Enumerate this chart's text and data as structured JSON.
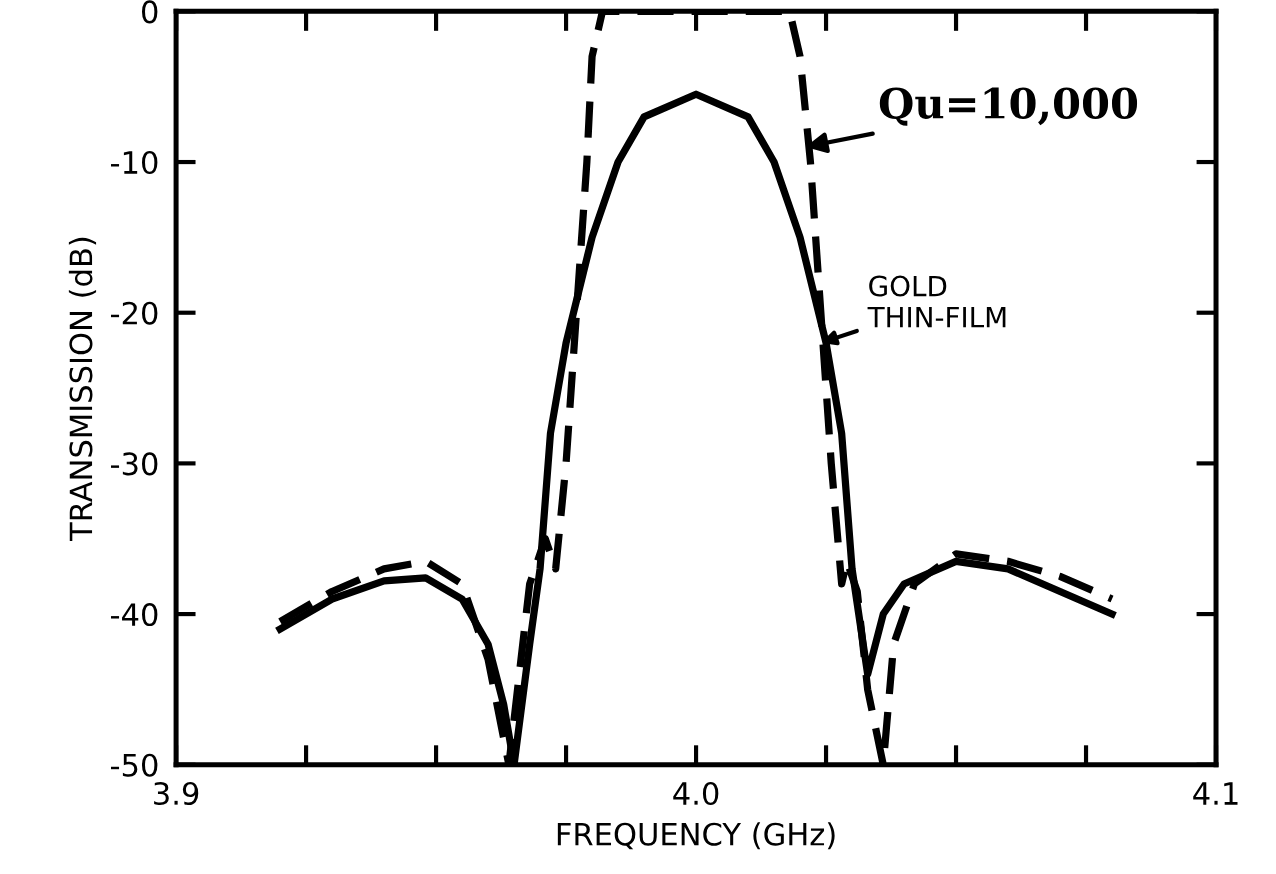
{
  "chart_data": {
    "type": "line",
    "xlabel": "FREQUENCY (GHz)",
    "ylabel": "TRANSMISSION (dB)",
    "xlim": [
      3.9,
      4.1
    ],
    "ylim": [
      -50,
      0
    ],
    "xticks": [
      3.9,
      {
        "value": 3.925,
        "label": null
      },
      {
        "value": 3.95,
        "label": null
      },
      {
        "value": 3.975,
        "label": null
      },
      {
        "value": 4.0,
        "label": "4.0"
      },
      {
        "value": 4.025,
        "label": null
      },
      {
        "value": 4.05,
        "label": null
      },
      {
        "value": 4.075,
        "label": null
      },
      4.1
    ],
    "yticks": [
      -50,
      -40,
      -30,
      -20,
      -10,
      0
    ],
    "grid": false,
    "legend": false,
    "series": [
      {
        "color": "#000000",
        "line_style": "solid",
        "x": [
          3.92,
          3.93,
          3.94,
          3.948,
          3.955,
          3.96,
          3.963,
          3.965,
          3.968,
          3.97,
          3.972,
          3.975,
          3.98,
          3.985,
          3.99,
          4.0,
          4.01,
          4.015,
          4.02,
          4.025,
          4.028,
          4.03,
          4.033,
          4.036,
          4.04,
          4.05,
          4.06,
          4.07,
          4.08
        ],
        "values": [
          -41,
          -39,
          -37.8,
          -37.6,
          -39,
          -42,
          -46,
          -50,
          -42,
          -37,
          -28,
          -22,
          -15,
          -10,
          -7,
          -5.5,
          -7,
          -10,
          -15,
          -22,
          -28,
          -37,
          -44,
          -40,
          -38,
          -36.5,
          -37,
          -38.5,
          -40
        ]
      },
      {
        "color": "#000000",
        "line_style": "dashed",
        "x": [
          3.92,
          3.93,
          3.94,
          3.948,
          3.955,
          3.96,
          3.964,
          3.966,
          3.968,
          3.97,
          3.971,
          3.973,
          3.975,
          3.977,
          3.979,
          3.98,
          3.982,
          4.018,
          4.02,
          4.022,
          4.024,
          4.026,
          4.028,
          4.029,
          4.031,
          4.033,
          4.036,
          4.038,
          4.042,
          4.05,
          4.06,
          4.07,
          4.08
        ],
        "values": [
          -40.5,
          -38.5,
          -37,
          -36.5,
          -38,
          -43,
          -50,
          -44,
          -38,
          -36,
          -35,
          -37,
          -30,
          -20,
          -10,
          -3,
          0,
          0,
          -3,
          -10,
          -20,
          -30,
          -38,
          -36.5,
          -38.5,
          -45,
          -50,
          -42,
          -38,
          -36,
          -36.5,
          -37.5,
          -39
        ]
      }
    ],
    "annotations": [
      {
        "text": "Qu=10,000",
        "x": 4.021,
        "y": -9
      },
      {
        "text": "GOLD\nTHIN-FILM",
        "x": 4.024,
        "y": -22
      }
    ]
  }
}
